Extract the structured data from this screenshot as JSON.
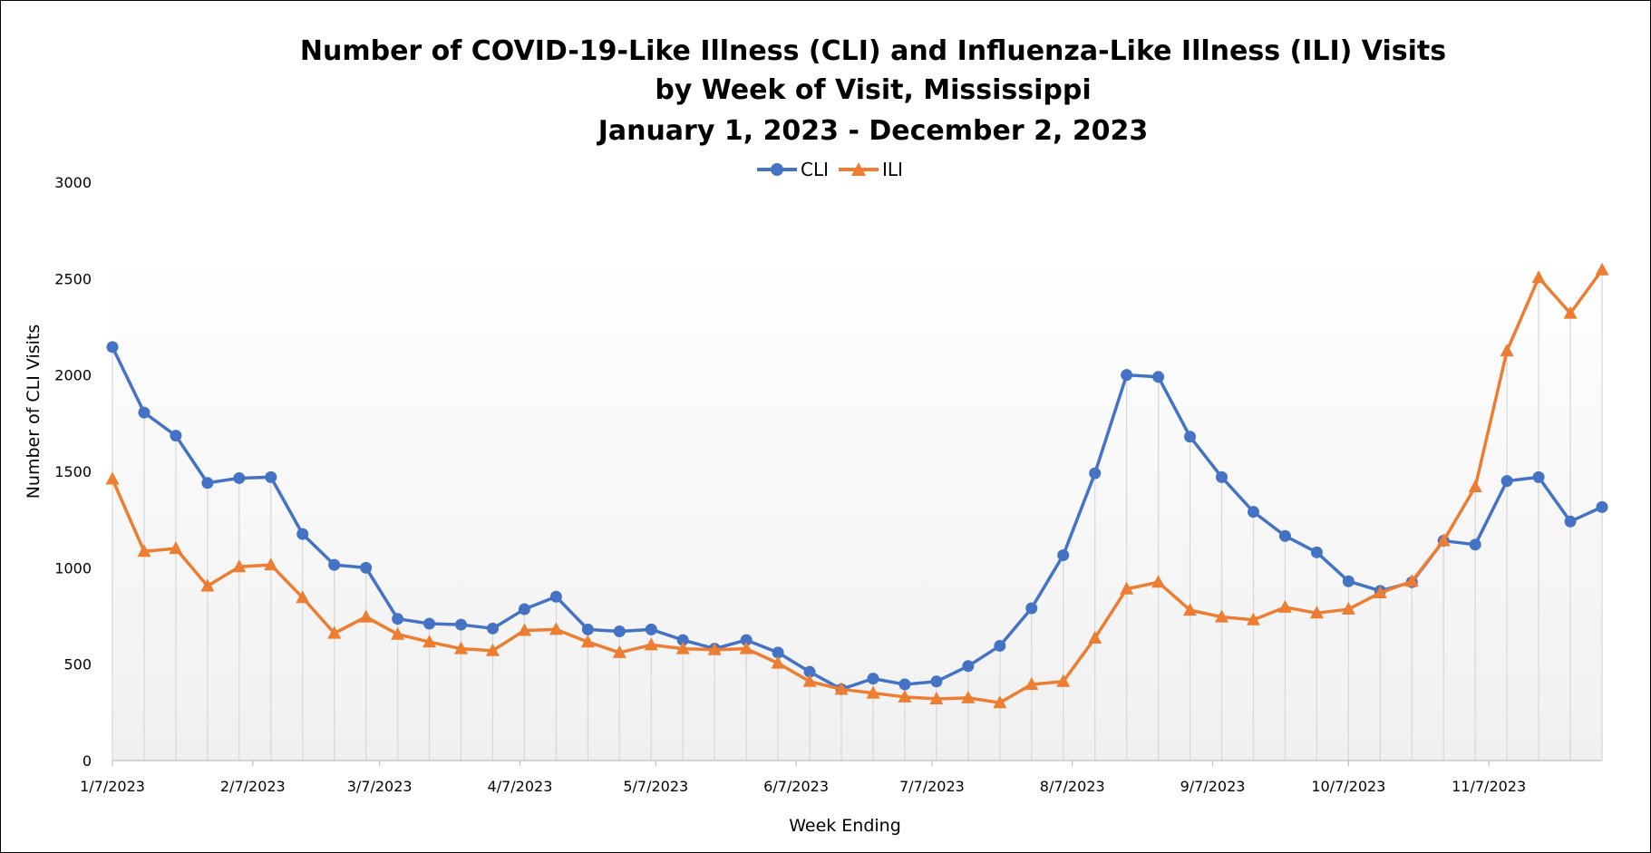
{
  "chart_data": {
    "type": "line",
    "title_lines": [
      "Number of COVID-19-Like Illness (CLI) and Influenza-Like Illness (ILI) Visits",
      "by Week of Visit, Mississippi",
      "January 1, 2023 - December 2, 2023"
    ],
    "xlabel": "Week Ending",
    "ylabel": "Number of CLI Visits",
    "ylim": [
      0,
      3000
    ],
    "yticks": [
      0,
      500,
      1000,
      1500,
      2000,
      2500,
      3000
    ],
    "x_tick_labels": [
      "1/7/2023",
      "2/7/2023",
      "3/7/2023",
      "4/7/2023",
      "5/7/2023",
      "6/7/2023",
      "7/7/2023",
      "8/7/2023",
      "9/7/2023",
      "10/7/2023",
      "11/7/2023"
    ],
    "x_tick_dates": [
      "2023-01-07",
      "2023-02-07",
      "2023-03-07",
      "2023-04-07",
      "2023-05-07",
      "2023-06-07",
      "2023-07-07",
      "2023-08-07",
      "2023-09-07",
      "2023-10-07",
      "2023-11-07"
    ],
    "x_range": [
      "2023-01-07",
      "2023-12-02"
    ],
    "week_ending_dates": [
      "2023-01-07",
      "2023-01-14",
      "2023-01-21",
      "2023-01-28",
      "2023-02-04",
      "2023-02-11",
      "2023-02-18",
      "2023-02-25",
      "2023-03-04",
      "2023-03-11",
      "2023-03-18",
      "2023-03-25",
      "2023-04-01",
      "2023-04-08",
      "2023-04-15",
      "2023-04-22",
      "2023-04-29",
      "2023-05-06",
      "2023-05-13",
      "2023-05-20",
      "2023-05-27",
      "2023-06-03",
      "2023-06-10",
      "2023-06-17",
      "2023-06-24",
      "2023-07-01",
      "2023-07-08",
      "2023-07-15",
      "2023-07-22",
      "2023-07-29",
      "2023-08-05",
      "2023-08-12",
      "2023-08-19",
      "2023-08-26",
      "2023-09-02",
      "2023-09-09",
      "2023-09-16",
      "2023-09-23",
      "2023-09-30",
      "2023-10-07",
      "2023-10-14",
      "2023-10-21",
      "2023-10-28",
      "2023-11-04",
      "2023-11-11",
      "2023-11-18",
      "2023-11-25",
      "2023-12-02"
    ],
    "series": [
      {
        "name": "CLI",
        "color": "#4472C4",
        "marker": "circle",
        "values": [
          2145,
          1805,
          1685,
          1440,
          1465,
          1470,
          1175,
          1015,
          1000,
          735,
          710,
          705,
          685,
          785,
          850,
          680,
          670,
          680,
          625,
          580,
          625,
          560,
          460,
          370,
          425,
          395,
          410,
          490,
          595,
          790,
          1065,
          1490,
          2000,
          1990,
          1680,
          1470,
          1290,
          1165,
          1080,
          930,
          880,
          925,
          1140,
          1120,
          1450,
          1470,
          1240,
          1315
        ]
      },
      {
        "name": "ILI",
        "color": "#ED7D31",
        "marker": "triangle",
        "values": [
          1460,
          1085,
          1100,
          905,
          1005,
          1015,
          845,
          660,
          745,
          655,
          615,
          580,
          570,
          675,
          680,
          615,
          560,
          600,
          580,
          575,
          580,
          505,
          410,
          370,
          350,
          330,
          320,
          325,
          300,
          395,
          410,
          635,
          890,
          925,
          780,
          745,
          730,
          795,
          765,
          785,
          870,
          930,
          1140,
          1420,
          2125,
          2505,
          2320,
          2545
        ]
      }
    ],
    "grid": {
      "horizontal": false,
      "vertical_drop_lines": true
    },
    "legend_position": "top-center"
  }
}
